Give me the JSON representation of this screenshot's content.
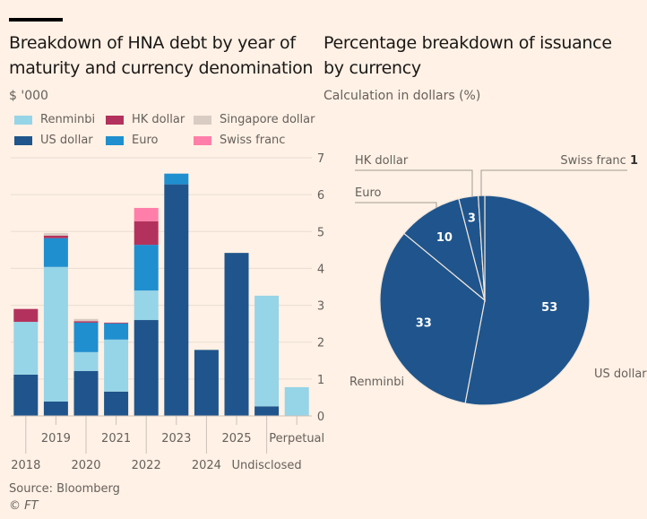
{
  "left": {
    "title_line1": "Breakdown of HNA debt by year of",
    "title_line2": "maturity and currency denomination",
    "unit": "$ '000"
  },
  "right": {
    "title_line1": "Percentage breakdown of issuance",
    "title_line2": "by currency",
    "subtitle": "Calculation in dollars (%)"
  },
  "legend": [
    {
      "name": "Renminbi",
      "color": "#96d4e8"
    },
    {
      "name": "HK dollar",
      "color": "#b3325d"
    },
    {
      "name": "Singapore dollar",
      "color": "#d9ccc3"
    },
    {
      "name": "US dollar",
      "color": "#1f558c"
    },
    {
      "name": "Euro",
      "color": "#1f8fcf"
    },
    {
      "name": "Swiss franc",
      "color": "#ff7faa"
    }
  ],
  "footer": {
    "source": "Source: Bloomberg",
    "copyright": "© FT"
  },
  "chart_data": [
    {
      "type": "bar",
      "stacked": true,
      "title": "Breakdown of HNA debt by year of maturity and currency denomination",
      "ylabel": "$ '000",
      "xlabel": "",
      "ylim": [
        0,
        7
      ],
      "yticks": [
        0,
        1,
        2,
        3,
        4,
        5,
        6,
        7
      ],
      "y_axis_side": "right",
      "grid": true,
      "legend_position": "top-left",
      "categories": [
        "2018",
        "2019",
        "2020",
        "2021",
        "2022",
        "2023",
        "2024",
        "2025",
        "Undisclosed",
        "Perpetual"
      ],
      "series": [
        {
          "name": "US dollar",
          "color": "#1f558c",
          "values": [
            1.12,
            0.39,
            1.22,
            0.66,
            2.6,
            6.28,
            1.79,
            4.42,
            0.26,
            0
          ]
        },
        {
          "name": "Renminbi",
          "color": "#96d4e8",
          "values": [
            1.43,
            3.65,
            0.51,
            1.41,
            0.8,
            0,
            0,
            0,
            3.0,
            0.78
          ]
        },
        {
          "name": "Euro",
          "color": "#1f8fcf",
          "values": [
            0,
            0.78,
            0.8,
            0.44,
            1.24,
            0.29,
            0,
            0,
            0,
            0
          ]
        },
        {
          "name": "HK dollar",
          "color": "#b3325d",
          "values": [
            0.35,
            0.07,
            0.04,
            0.02,
            0.64,
            0,
            0,
            0,
            0,
            0
          ]
        },
        {
          "name": "Singapore dollar",
          "color": "#d9ccc3",
          "values": [
            0,
            0.07,
            0.06,
            0,
            0,
            0,
            0,
            0,
            0,
            0
          ]
        },
        {
          "name": "Swiss franc",
          "color": "#ff7faa",
          "values": [
            0,
            0,
            0,
            0,
            0.36,
            0,
            0,
            0,
            0,
            0
          ]
        }
      ]
    },
    {
      "type": "pie",
      "title": "Percentage breakdown of issuance by currency",
      "subtitle": "Calculation in dollars (%)",
      "slices": [
        {
          "name": "US dollar",
          "value": 53,
          "label": "53"
        },
        {
          "name": "Renminbi",
          "value": 33,
          "label": "33"
        },
        {
          "name": "Euro",
          "value": 10,
          "label": "10"
        },
        {
          "name": "HK dollar",
          "value": 3,
          "label": "3"
        },
        {
          "name": "Swiss franc",
          "value": 1,
          "label": "1"
        }
      ],
      "fill_color": "#1f558c"
    }
  ]
}
